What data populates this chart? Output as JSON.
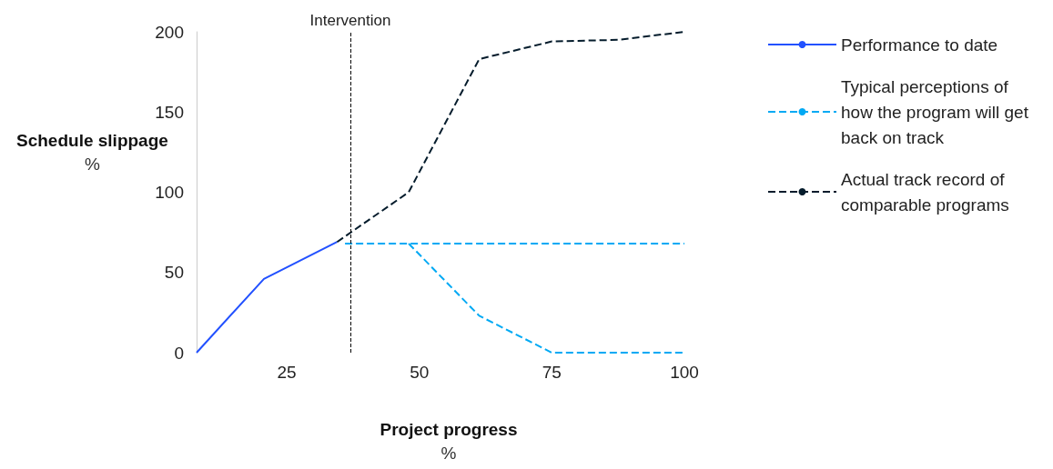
{
  "chart_data": {
    "type": "line",
    "xlabel": "Project progress %",
    "ylabel": "Schedule slippage %",
    "xlim": [
      8,
      100
    ],
    "xticks": [
      25,
      50,
      75,
      100
    ],
    "ylim": [
      0,
      200
    ],
    "yticks": [
      0,
      50,
      100,
      150,
      200
    ],
    "grid": false,
    "legend": "right",
    "marker": "none",
    "series": [
      {
        "name": "Performance to date",
        "color": "#2251ff",
        "line_style": "solid",
        "x": [
          8,
          20.7,
          34.5
        ],
        "values": [
          0,
          46,
          69
        ]
      },
      {
        "name": "Typical perceptions of how the program will get back on track",
        "color": "#00a9f4",
        "line_style": "dashed",
        "x": [
          36,
          100
        ],
        "values": [
          68,
          68
        ]
      },
      {
        "color": "#00a9f4",
        "line_style": "dashed",
        "x": [
          48,
          61.3,
          75,
          100
        ],
        "values": [
          68,
          23,
          0,
          0
        ]
      },
      {
        "name": "Actual track record of comparable programs",
        "color": "#051c2c",
        "line_style": "dashed",
        "x": [
          34.5,
          48,
          61.3,
          75,
          87.5,
          100
        ],
        "values": [
          69,
          100,
          183,
          194,
          195,
          200
        ]
      }
    ],
    "ref_lines": [
      {
        "axis": "x",
        "value": 37,
        "label": "Intervention",
        "color": "#000000",
        "line_style": "dashed"
      }
    ]
  }
}
